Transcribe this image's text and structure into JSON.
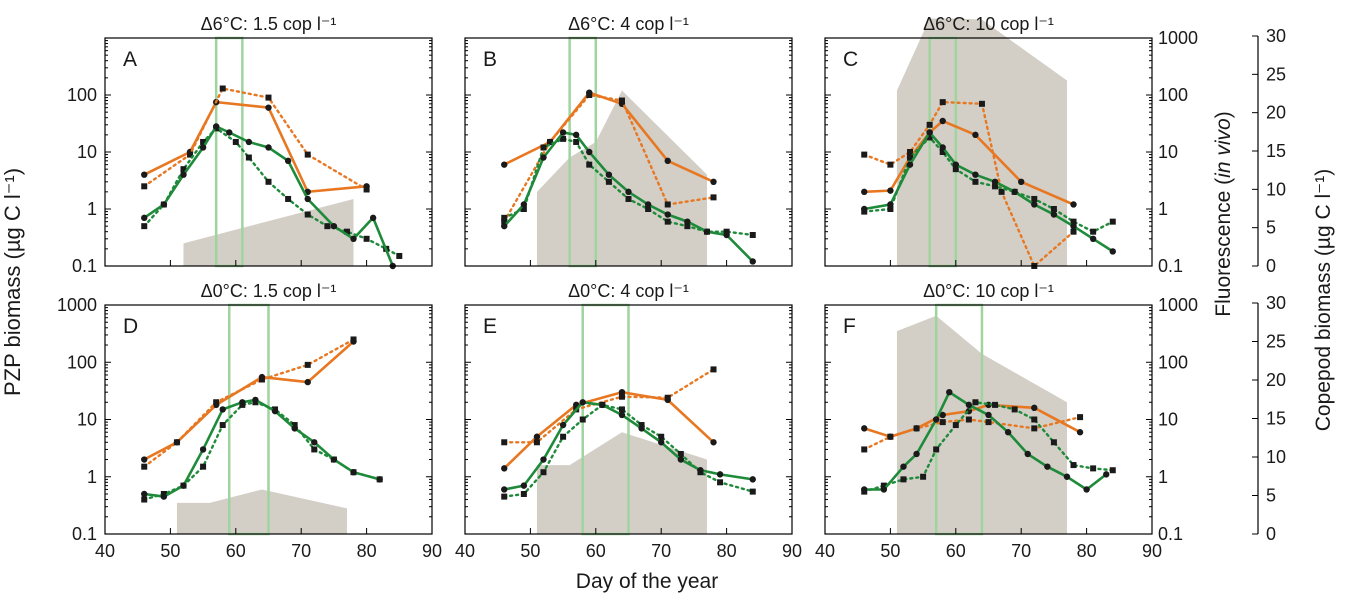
{
  "figure": {
    "ylabel_left": "PZP biomass (µg C l⁻¹)",
    "xlabel": "Day of the year",
    "ylabel_fluor_a": "Fluorescence (",
    "ylabel_fluor_b": "in vivo",
    "ylabel_fluor_c": ")",
    "ylabel_copepod": "Copepod biomass  (µg C l⁻¹)"
  },
  "colors": {
    "orange": "#e87722",
    "green": "#1e8a3a",
    "black": "#1a1a1a",
    "shade": "#d3cfc7",
    "window": "#9fd49f"
  },
  "chart_data": [
    {
      "type": "line",
      "panel": "A",
      "title": "Δ6°C: 1.5 cop l⁻¹",
      "xlim": [
        40,
        90
      ],
      "ylim": [
        0.1,
        1000
      ],
      "yscale": "log",
      "window": [
        57,
        61
      ],
      "fluorescence": [
        [
          52,
          0.25
        ],
        [
          78,
          1.5
        ]
      ],
      "copepod_area": [
        [
          52,
          0.25
        ],
        [
          78,
          1.5
        ]
      ],
      "orange_solid": [
        [
          46,
          4
        ],
        [
          53,
          10
        ],
        [
          57,
          75
        ],
        [
          65,
          60
        ],
        [
          71,
          2
        ],
        [
          80,
          2.5
        ]
      ],
      "orange_dotted": [
        [
          46,
          2.5
        ],
        [
          53,
          9
        ],
        [
          58,
          130
        ],
        [
          65,
          90
        ],
        [
          71,
          9
        ],
        [
          80,
          2.2
        ]
      ],
      "green_solid": [
        [
          46,
          0.7
        ],
        [
          49,
          1.2
        ],
        [
          52,
          4
        ],
        [
          55,
          12
        ],
        [
          57,
          28
        ],
        [
          59,
          22
        ],
        [
          62,
          15
        ],
        [
          65,
          12
        ],
        [
          68,
          7
        ],
        [
          71,
          1.5
        ],
        [
          75,
          0.5
        ],
        [
          78,
          0.3
        ],
        [
          81,
          0.7
        ],
        [
          84,
          0.1
        ]
      ],
      "green_dotted": [
        [
          46,
          0.5
        ],
        [
          49,
          1.2
        ],
        [
          52,
          5
        ],
        [
          55,
          15
        ],
        [
          57,
          26
        ],
        [
          60,
          15
        ],
        [
          62,
          8
        ],
        [
          65,
          3
        ],
        [
          68,
          1.5
        ],
        [
          71,
          0.8
        ],
        [
          74,
          0.5
        ],
        [
          77,
          0.4
        ],
        [
          80,
          0.3
        ],
        [
          83,
          0.2
        ],
        [
          85,
          0.15
        ]
      ]
    },
    {
      "type": "line",
      "panel": "B",
      "title": "Δ6°C: 4 cop l⁻¹",
      "xlim": [
        40,
        90
      ],
      "ylim": [
        0.1,
        1000
      ],
      "yscale": "log",
      "window": [
        56,
        60
      ],
      "fluorescence": [
        [
          51,
          2
        ],
        [
          56,
          8
        ],
        [
          60,
          15
        ],
        [
          64,
          120
        ],
        [
          77,
          4
        ]
      ],
      "orange_solid": [
        [
          46,
          6
        ],
        [
          53,
          15
        ],
        [
          59,
          110
        ],
        [
          64,
          70
        ],
        [
          71,
          7
        ],
        [
          78,
          3
        ]
      ],
      "orange_dotted": [
        [
          46,
          0.6
        ],
        [
          53,
          15
        ],
        [
          59,
          100
        ],
        [
          64,
          80
        ],
        [
          71,
          1.2
        ],
        [
          78,
          1.6
        ]
      ],
      "green_solid": [
        [
          46,
          0.5
        ],
        [
          49,
          1.2
        ],
        [
          52,
          8
        ],
        [
          55,
          22
        ],
        [
          57,
          20
        ],
        [
          59,
          10
        ],
        [
          62,
          4
        ],
        [
          65,
          2
        ],
        [
          68,
          1.2
        ],
        [
          71,
          0.8
        ],
        [
          74,
          0.6
        ],
        [
          77,
          0.4
        ],
        [
          80,
          0.35
        ],
        [
          84,
          0.12
        ]
      ],
      "green_dotted": [
        [
          46,
          0.7
        ],
        [
          49,
          1.0
        ],
        [
          52,
          12
        ],
        [
          55,
          17
        ],
        [
          57,
          15
        ],
        [
          59,
          6
        ],
        [
          62,
          3
        ],
        [
          65,
          1.5
        ],
        [
          68,
          1
        ],
        [
          71,
          0.6
        ],
        [
          74,
          0.5
        ],
        [
          77,
          0.4
        ],
        [
          80,
          0.4
        ],
        [
          84,
          0.35
        ]
      ]
    },
    {
      "type": "line",
      "panel": "C",
      "title": "Δ6°C: 10 cop l⁻¹",
      "xlim": [
        40,
        90
      ],
      "ylim": [
        0.1,
        1000
      ],
      "yscale": "log",
      "window": [
        56,
        60
      ],
      "fluorescence": [
        [
          51,
          120
        ],
        [
          56,
          2200
        ],
        [
          60,
          2200
        ],
        [
          64,
          2100
        ],
        [
          77,
          180
        ]
      ],
      "orange_solid": [
        [
          46,
          2
        ],
        [
          50,
          2.1
        ],
        [
          53,
          8
        ],
        [
          56,
          22
        ],
        [
          58,
          35
        ],
        [
          63,
          20
        ],
        [
          70,
          3
        ],
        [
          78,
          1.2
        ]
      ],
      "orange_dotted": [
        [
          46,
          9
        ],
        [
          50,
          6
        ],
        [
          53,
          10
        ],
        [
          56,
          30
        ],
        [
          58,
          75
        ],
        [
          64,
          70
        ],
        [
          67,
          2
        ],
        [
          72,
          0.1
        ],
        [
          78,
          0.4
        ]
      ],
      "green_solid": [
        [
          46,
          1
        ],
        [
          50,
          1.2
        ],
        [
          53,
          6
        ],
        [
          56,
          22
        ],
        [
          58,
          12
        ],
        [
          60,
          6
        ],
        [
          63,
          4
        ],
        [
          66,
          3
        ],
        [
          69,
          2
        ],
        [
          72,
          1.2
        ],
        [
          75,
          0.8
        ],
        [
          78,
          0.5
        ],
        [
          81,
          0.3
        ],
        [
          84,
          0.18
        ]
      ],
      "green_dotted": [
        [
          46,
          0.9
        ],
        [
          50,
          1.0
        ],
        [
          53,
          8
        ],
        [
          56,
          18
        ],
        [
          58,
          10
        ],
        [
          60,
          5
        ],
        [
          63,
          3
        ],
        [
          66,
          2.5
        ],
        [
          69,
          2
        ],
        [
          72,
          1.5
        ],
        [
          75,
          1
        ],
        [
          78,
          0.6
        ],
        [
          81,
          0.4
        ],
        [
          84,
          0.6
        ]
      ]
    },
    {
      "type": "line",
      "panel": "D",
      "title": "Δ0°C: 1.5 cop l⁻¹",
      "xlim": [
        40,
        90
      ],
      "ylim": [
        0.1,
        1000
      ],
      "yscale": "log",
      "window": [
        59,
        65
      ],
      "fluorescence": [
        [
          51,
          0.35
        ],
        [
          56,
          0.35
        ],
        [
          64,
          0.6
        ],
        [
          77,
          0.28
        ]
      ],
      "orange_solid": [
        [
          46,
          2
        ],
        [
          51,
          4
        ],
        [
          57,
          18
        ],
        [
          64,
          55
        ],
        [
          71,
          45
        ],
        [
          78,
          230
        ]
      ],
      "orange_dotted": [
        [
          46,
          1.5
        ],
        [
          51,
          4
        ],
        [
          57,
          20
        ],
        [
          64,
          50
        ],
        [
          71,
          90
        ],
        [
          78,
          250
        ]
      ],
      "green_solid": [
        [
          46,
          0.5
        ],
        [
          49,
          0.45
        ],
        [
          52,
          0.7
        ],
        [
          55,
          3
        ],
        [
          58,
          15
        ],
        [
          61,
          20
        ],
        [
          63,
          22
        ],
        [
          66,
          14
        ],
        [
          69,
          7
        ],
        [
          72,
          4
        ],
        [
          75,
          2
        ],
        [
          78,
          1.2
        ],
        [
          82,
          0.9
        ]
      ],
      "green_dotted": [
        [
          46,
          0.4
        ],
        [
          49,
          0.5
        ],
        [
          52,
          0.7
        ],
        [
          55,
          1.5
        ],
        [
          58,
          8
        ],
        [
          61,
          18
        ],
        [
          63,
          20
        ],
        [
          66,
          15
        ],
        [
          69,
          8
        ],
        [
          72,
          3
        ],
        [
          75,
          2
        ],
        [
          78,
          1.2
        ],
        [
          82,
          0.9
        ]
      ]
    },
    {
      "type": "line",
      "panel": "E",
      "title": "Δ0°C: 4 cop l⁻¹",
      "xlim": [
        40,
        90
      ],
      "ylim": [
        0.1,
        1000
      ],
      "yscale": "log",
      "window": [
        58,
        65
      ],
      "fluorescence": [
        [
          51,
          1.6
        ],
        [
          56,
          1.6
        ],
        [
          64,
          6
        ],
        [
          77,
          2
        ]
      ],
      "orange_solid": [
        [
          46,
          1.4
        ],
        [
          51,
          5
        ],
        [
          57,
          18
        ],
        [
          64,
          30
        ],
        [
          71,
          22
        ],
        [
          78,
          4
        ]
      ],
      "orange_dotted": [
        [
          46,
          4
        ],
        [
          51,
          4
        ],
        [
          57,
          15
        ],
        [
          64,
          25
        ],
        [
          71,
          24
        ],
        [
          78,
          75
        ]
      ],
      "green_solid": [
        [
          46,
          0.6
        ],
        [
          49,
          0.7
        ],
        [
          52,
          2
        ],
        [
          55,
          8
        ],
        [
          58,
          20
        ],
        [
          61,
          18
        ],
        [
          64,
          12
        ],
        [
          67,
          7
        ],
        [
          70,
          4
        ],
        [
          73,
          2
        ],
        [
          76,
          1.3
        ],
        [
          79,
          1.1
        ],
        [
          84,
          0.9
        ]
      ],
      "green_dotted": [
        [
          46,
          0.45
        ],
        [
          49,
          0.5
        ],
        [
          52,
          1.2
        ],
        [
          55,
          5
        ],
        [
          58,
          10
        ],
        [
          61,
          18
        ],
        [
          64,
          15
        ],
        [
          67,
          8
        ],
        [
          70,
          5
        ],
        [
          73,
          2.5
        ],
        [
          76,
          1.2
        ],
        [
          79,
          0.8
        ],
        [
          84,
          0.55
        ]
      ]
    },
    {
      "type": "line",
      "panel": "F",
      "title": "Δ0°C: 10 cop l⁻¹",
      "xlim": [
        40,
        90
      ],
      "ylim": [
        0.1,
        1000
      ],
      "yscale": "log",
      "window": [
        57,
        64
      ],
      "fluorescence": [
        [
          51,
          350
        ],
        [
          57,
          650
        ],
        [
          64,
          140
        ],
        [
          77,
          20
        ]
      ],
      "orange_solid": [
        [
          46,
          7
        ],
        [
          50,
          5
        ],
        [
          54,
          7
        ],
        [
          58,
          12
        ],
        [
          62,
          14
        ],
        [
          65,
          18
        ],
        [
          72,
          16
        ],
        [
          79,
          6
        ]
      ],
      "orange_dotted": [
        [
          46,
          3
        ],
        [
          50,
          5
        ],
        [
          54,
          7
        ],
        [
          58,
          9
        ],
        [
          62,
          10
        ],
        [
          65,
          9
        ],
        [
          72,
          7
        ],
        [
          79,
          11
        ]
      ],
      "green_solid": [
        [
          46,
          0.6
        ],
        [
          49,
          0.6
        ],
        [
          52,
          1.5
        ],
        [
          54,
          2.5
        ],
        [
          57,
          10
        ],
        [
          59,
          30
        ],
        [
          62,
          18
        ],
        [
          65,
          12
        ],
        [
          68,
          6
        ],
        [
          71,
          2.5
        ],
        [
          74,
          1.5
        ],
        [
          77,
          1
        ],
        [
          80,
          0.6
        ],
        [
          83,
          1.1
        ]
      ],
      "green_dotted": [
        [
          46,
          0.55
        ],
        [
          49,
          0.7
        ],
        [
          52,
          0.9
        ],
        [
          55,
          1
        ],
        [
          57,
          3
        ],
        [
          60,
          8
        ],
        [
          63,
          20
        ],
        [
          66,
          18
        ],
        [
          69,
          15
        ],
        [
          72,
          10
        ],
        [
          75,
          4
        ],
        [
          78,
          1.6
        ],
        [
          81,
          1.4
        ],
        [
          84,
          1.3
        ]
      ]
    }
  ],
  "axes": {
    "x_ticks": [
      "40",
      "50",
      "60",
      "70",
      "80",
      "90"
    ],
    "y_ticks_top": [
      "0.1",
      "1",
      "10",
      "100"
    ],
    "y_ticks_bottom": [
      "0.1",
      "1",
      "10",
      "100",
      "1000"
    ],
    "fluor_ticks": [
      "0.1",
      "1",
      "10",
      "100",
      "1000"
    ],
    "copepod_ticks": [
      "0",
      "5",
      "10",
      "15",
      "20",
      "25",
      "30"
    ]
  }
}
